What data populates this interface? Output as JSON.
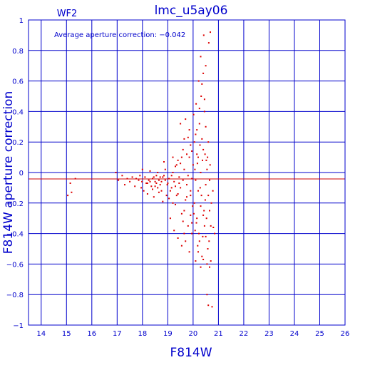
{
  "chart_data": {
    "type": "scatter",
    "title": "lmc_u5ay06",
    "subtitle": "WF2",
    "xlabel": "F814W",
    "ylabel": "F814W aperture correction",
    "annotation": "Average aperture correction: −0.042",
    "xlim": [
      13.5,
      26
    ],
    "ylim": [
      -1,
      1
    ],
    "x_ticks": [
      14,
      15,
      16,
      17,
      18,
      19,
      20,
      21,
      22,
      23,
      24,
      25,
      26
    ],
    "y_ticks": [
      -1,
      -0.8,
      -0.6,
      -0.4,
      -0.2,
      0,
      0.2,
      0.4,
      0.6,
      0.8,
      1
    ],
    "x_tick_labels": [
      "14",
      "15",
      "16",
      "17",
      "18",
      "19",
      "20",
      "21",
      "22",
      "23",
      "24",
      "25",
      "26"
    ],
    "y_tick_labels": [
      "−1",
      "−0.8",
      "−0.6",
      "−0.4",
      "−0.2",
      "0",
      "0.2",
      "0.4",
      "0.6",
      "0.8",
      "1"
    ],
    "grid": true,
    "reference_lines": [
      {
        "y": 0,
        "color": "#0000cc"
      },
      {
        "y": -0.042,
        "color": "#cc0000"
      }
    ],
    "colors": {
      "axes": "#0000cc",
      "points": "#dd0000",
      "background": "#ffffff"
    },
    "series": [
      {
        "points": [
          [
            15.05,
            -0.15
          ],
          [
            15.15,
            -0.07
          ],
          [
            15.2,
            -0.13
          ],
          [
            15.35,
            -0.04
          ],
          [
            16.95,
            0.0
          ],
          [
            17.05,
            -0.05
          ],
          [
            17.2,
            -0.02
          ],
          [
            17.3,
            -0.08
          ],
          [
            17.4,
            -0.04
          ],
          [
            17.5,
            -0.06
          ],
          [
            17.6,
            -0.03
          ],
          [
            17.7,
            -0.09
          ],
          [
            17.75,
            -0.04
          ],
          [
            17.85,
            -0.05
          ],
          [
            17.9,
            -0.02
          ],
          [
            17.95,
            -0.1
          ],
          [
            17.98,
            -0.06
          ],
          [
            18.0,
            0.02
          ],
          [
            18.05,
            -0.12
          ],
          [
            18.1,
            -0.03
          ],
          [
            18.15,
            -0.07
          ],
          [
            18.2,
            -0.14
          ],
          [
            18.25,
            -0.05
          ],
          [
            18.3,
            0.01
          ],
          [
            18.35,
            -0.09
          ],
          [
            18.4,
            -0.04
          ],
          [
            18.45,
            -0.16
          ],
          [
            18.5,
            -0.06
          ],
          [
            18.55,
            -0.02
          ],
          [
            18.6,
            -0.1
          ],
          [
            18.65,
            -0.05
          ],
          [
            18.7,
            -0.08
          ],
          [
            18.75,
            -0.12
          ],
          [
            18.8,
            -0.03
          ],
          [
            18.85,
            0.07
          ],
          [
            18.9,
            -0.05
          ],
          [
            18.95,
            -0.15
          ],
          [
            18.98,
            -0.08
          ],
          [
            18.2,
            -0.07
          ],
          [
            18.4,
            -0.11
          ],
          [
            18.6,
            0.0
          ],
          [
            18.7,
            -0.03
          ],
          [
            18.8,
            -0.19
          ],
          [
            18.9,
            0.02
          ],
          [
            18.3,
            -0.06
          ],
          [
            18.5,
            -0.09
          ],
          [
            18.65,
            -0.13
          ],
          [
            18.85,
            -0.02
          ],
          [
            18.55,
            -0.07
          ],
          [
            18.45,
            -0.03
          ],
          [
            18.75,
            -0.06
          ],
          [
            19.0,
            -0.07
          ],
          [
            19.05,
            -0.04
          ],
          [
            19.1,
            -0.12
          ],
          [
            19.15,
            -0.02
          ],
          [
            19.2,
            -0.2
          ],
          [
            19.25,
            -0.06
          ],
          [
            19.3,
            -0.09
          ],
          [
            19.35,
            0.05
          ],
          [
            19.4,
            -0.14
          ],
          [
            19.45,
            -0.03
          ],
          [
            19.5,
            -0.1
          ],
          [
            19.55,
            -0.27
          ],
          [
            19.6,
            -0.05
          ],
          [
            19.65,
            0.02
          ],
          [
            19.7,
            -0.18
          ],
          [
            19.75,
            -0.08
          ],
          [
            19.8,
            -0.35
          ],
          [
            19.85,
            0.1
          ],
          [
            19.9,
            -0.12
          ],
          [
            19.95,
            -0.04
          ],
          [
            19.98,
            -0.22
          ],
          [
            19.1,
            -0.3
          ],
          [
            19.25,
            -0.38
          ],
          [
            19.4,
            -0.43
          ],
          [
            19.55,
            -0.48
          ],
          [
            19.7,
            -0.45
          ],
          [
            19.85,
            -0.52
          ],
          [
            19.95,
            -0.4
          ],
          [
            19.2,
            0.0
          ],
          [
            19.35,
            -0.15
          ],
          [
            19.5,
            0.06
          ],
          [
            19.65,
            -0.25
          ],
          [
            19.8,
            -0.02
          ],
          [
            19.9,
            -0.28
          ],
          [
            19.3,
            -0.21
          ],
          [
            19.45,
            -0.07
          ],
          [
            19.6,
            -0.32
          ],
          [
            19.75,
            -0.16
          ],
          [
            19.15,
            -0.1
          ],
          [
            19.05,
            -0.17
          ],
          [
            19.5,
            0.32
          ],
          [
            19.65,
            0.22
          ],
          [
            19.7,
            0.35
          ],
          [
            19.8,
            0.23
          ],
          [
            19.9,
            0.18
          ],
          [
            19.6,
            0.15
          ],
          [
            19.75,
            0.12
          ],
          [
            19.85,
            0.28
          ],
          [
            19.95,
            0.14
          ],
          [
            19.55,
            0.1
          ],
          [
            19.4,
            0.08
          ],
          [
            19.3,
            0.04
          ],
          [
            19.2,
            0.1
          ],
          [
            19.9,
            -0.15
          ],
          [
            19.95,
            -0.33
          ],
          [
            19.65,
            -0.4
          ],
          [
            20.0,
            0.05
          ],
          [
            20.05,
            -0.2
          ],
          [
            20.1,
            0.25
          ],
          [
            20.15,
            -0.3
          ],
          [
            20.2,
            0.1
          ],
          [
            20.25,
            -0.45
          ],
          [
            20.3,
            0.0
          ],
          [
            20.35,
            -0.55
          ],
          [
            20.4,
            0.15
          ],
          [
            20.45,
            -0.35
          ],
          [
            20.5,
            0.3
          ],
          [
            20.55,
            -0.6
          ],
          [
            20.6,
            0.2
          ],
          [
            20.65,
            -0.25
          ],
          [
            20.02,
            0.38
          ],
          [
            20.08,
            -0.38
          ],
          [
            20.12,
            0.45
          ],
          [
            20.18,
            -0.48
          ],
          [
            20.22,
            0.6
          ],
          [
            20.28,
            -0.1
          ],
          [
            20.32,
            0.5
          ],
          [
            20.38,
            -0.42
          ],
          [
            20.42,
            0.9
          ],
          [
            20.48,
            -0.18
          ],
          [
            20.52,
            0.08
          ],
          [
            20.58,
            -0.5
          ],
          [
            20.62,
            0.85
          ],
          [
            20.68,
            0.92
          ],
          [
            20.05,
            0.2
          ],
          [
            20.15,
            0.12
          ],
          [
            20.25,
            0.32
          ],
          [
            20.35,
            0.22
          ],
          [
            20.45,
            0.4
          ],
          [
            20.55,
            0.02
          ],
          [
            20.65,
            -0.05
          ],
          [
            20.1,
            -0.05
          ],
          [
            20.2,
            -0.12
          ],
          [
            20.3,
            -0.22
          ],
          [
            20.4,
            -0.28
          ],
          [
            20.5,
            -0.08
          ],
          [
            20.6,
            -0.15
          ],
          [
            20.7,
            -0.35
          ],
          [
            20.03,
            -0.27
          ],
          [
            20.13,
            -0.33
          ],
          [
            20.23,
            -0.4
          ],
          [
            20.33,
            -0.15
          ],
          [
            20.43,
            -0.25
          ],
          [
            20.53,
            -0.3
          ],
          [
            20.63,
            -0.45
          ],
          [
            20.07,
            0.02
          ],
          [
            20.17,
            0.06
          ],
          [
            20.27,
            0.18
          ],
          [
            20.37,
            0.08
          ],
          [
            20.47,
            0.12
          ],
          [
            20.57,
            0.1
          ],
          [
            20.67,
            0.05
          ],
          [
            20.3,
            0.76
          ],
          [
            20.35,
            0.58
          ],
          [
            20.4,
            0.65
          ],
          [
            20.45,
            0.48
          ],
          [
            20.25,
            0.42
          ],
          [
            20.15,
            0.28
          ],
          [
            20.5,
            0.7
          ],
          [
            20.55,
            -0.8
          ],
          [
            20.6,
            -0.87
          ],
          [
            20.75,
            -0.88
          ],
          [
            20.7,
            -0.58
          ],
          [
            20.65,
            -0.62
          ],
          [
            20.8,
            -0.36
          ],
          [
            20.85,
            -0.4
          ],
          [
            20.72,
            -0.2
          ],
          [
            20.78,
            -0.12
          ],
          [
            20.1,
            -0.58
          ],
          [
            20.2,
            -0.52
          ],
          [
            20.4,
            -0.57
          ],
          [
            20.3,
            -0.62
          ],
          [
            20.5,
            -0.42
          ]
        ]
      }
    ]
  }
}
